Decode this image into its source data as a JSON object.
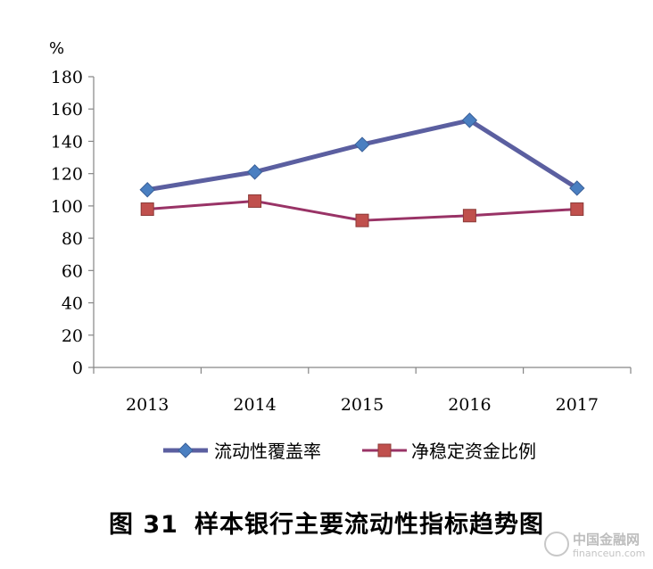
{
  "chart_data": {
    "type": "line",
    "title": "",
    "unit_label": "%",
    "xlabel": "",
    "ylabel": "",
    "categories": [
      "2013",
      "2014",
      "2015",
      "2016",
      "2017"
    ],
    "ylim": [
      0,
      180
    ],
    "yticks": [
      "0",
      "20",
      "40",
      "60",
      "80",
      "100",
      "120",
      "140",
      "160",
      "180"
    ],
    "series": [
      {
        "name": "流动性覆盖率",
        "values": [
          110,
          121,
          138,
          153,
          111
        ],
        "color": "#5b5fa0",
        "marker": "diamond",
        "marker_color": "#4a7fc1"
      },
      {
        "name": "净稳定资金比例",
        "values": [
          98,
          103,
          91,
          94,
          98
        ],
        "color": "#993366",
        "marker": "square",
        "marker_color": "#c0504d"
      }
    ],
    "grid": false,
    "legend_position": "bottom"
  },
  "caption": {
    "number": "图 31",
    "text": "样本银行主要流动性指标趋势图"
  },
  "watermark": {
    "cn": "中国金融网",
    "en": "financeun.com"
  }
}
